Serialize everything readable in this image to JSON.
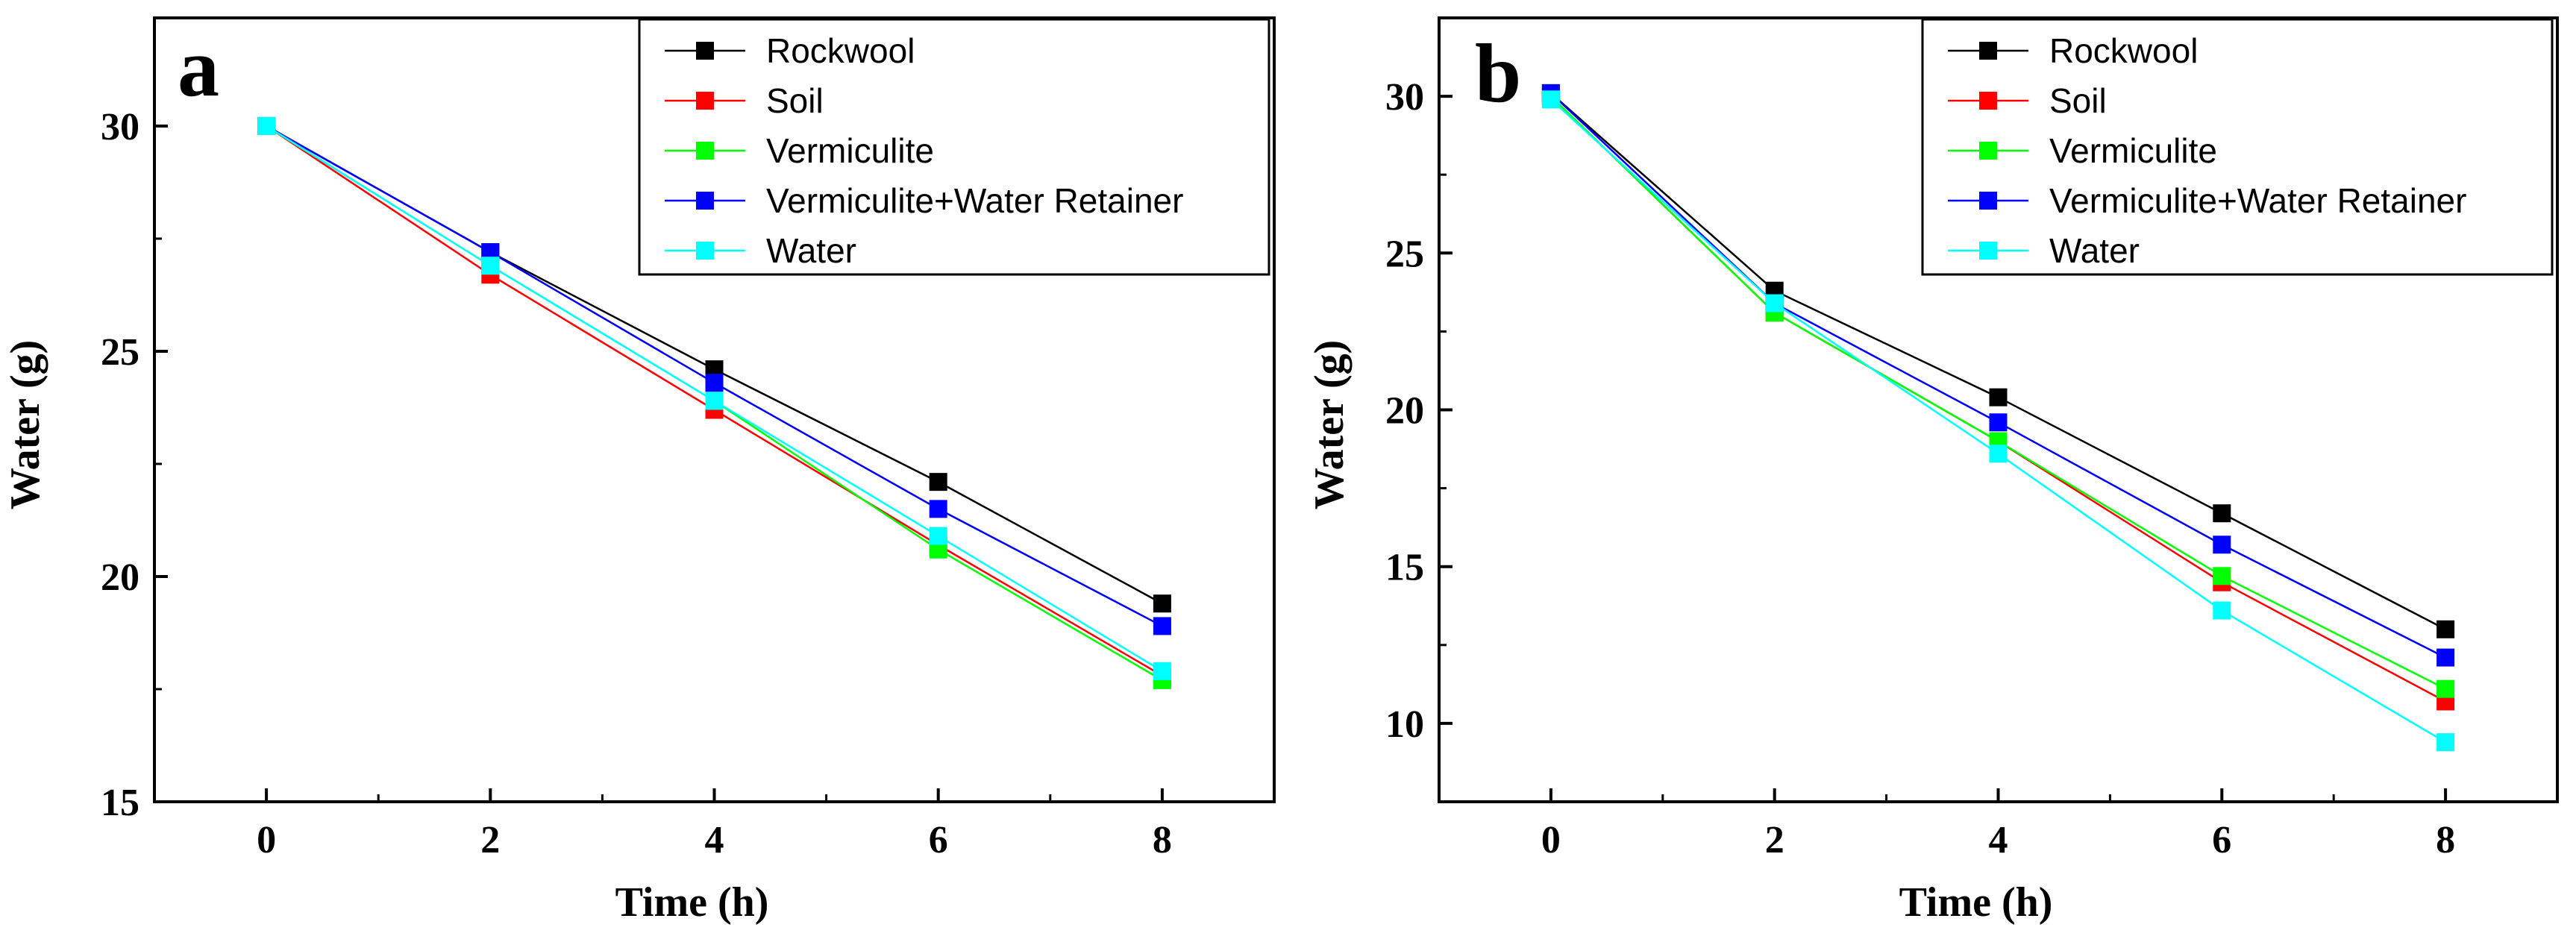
{
  "chart_data": [
    {
      "type": "line",
      "panel_label": "a",
      "xlabel": "Time (h)",
      "ylabel": "Water (g)",
      "x": [
        0,
        2,
        4,
        6,
        8
      ],
      "xticks": [
        0,
        2,
        4,
        6,
        8
      ],
      "yticks": [
        15,
        20,
        25,
        30
      ],
      "xlim": [
        -1,
        9
      ],
      "ylim": [
        15,
        32.4
      ],
      "legend_position": "top-right",
      "series": [
        {
          "name": "Rockwool",
          "color": "#000000",
          "values": [
            30.0,
            27.2,
            24.6,
            22.1,
            19.4
          ]
        },
        {
          "name": "Soil",
          "color": "#ff0000",
          "values": [
            30.0,
            26.7,
            23.7,
            20.7,
            17.8
          ]
        },
        {
          "name": "Vermiculite",
          "color": "#00ff00",
          "values": [
            30.0,
            26.9,
            23.9,
            20.6,
            17.7
          ]
        },
        {
          "name": "Vermiculite+Water Retainer",
          "color": "#0000ff",
          "values": [
            30.0,
            27.2,
            24.3,
            21.5,
            18.9
          ]
        },
        {
          "name": "Water",
          "color": "#00ffff",
          "values": [
            30.0,
            26.9,
            23.9,
            20.9,
            17.9
          ]
        }
      ]
    },
    {
      "type": "line",
      "panel_label": "b",
      "xlabel": "Time (h)",
      "ylabel": "Water (g)",
      "x": [
        0,
        2,
        4,
        6,
        8
      ],
      "xticks": [
        0,
        2,
        4,
        6,
        8
      ],
      "yticks": [
        10,
        15,
        20,
        25,
        30
      ],
      "xlim": [
        -1,
        9
      ],
      "ylim": [
        7.5,
        32.5
      ],
      "legend_position": "top-right",
      "series": [
        {
          "name": "Rockwool",
          "color": "#000000",
          "values": [
            30.1,
            23.8,
            20.4,
            16.7,
            13.0
          ]
        },
        {
          "name": "Soil",
          "color": "#ff0000",
          "values": [
            30.0,
            23.1,
            19.0,
            14.5,
            10.7
          ]
        },
        {
          "name": "Vermiculite",
          "color": "#00ff00",
          "values": [
            30.0,
            23.1,
            19.0,
            14.7,
            11.1
          ]
        },
        {
          "name": "Vermiculite+Water Retainer",
          "color": "#0000ff",
          "values": [
            30.1,
            23.4,
            19.6,
            15.7,
            12.1
          ]
        },
        {
          "name": "Water",
          "color": "#00ffff",
          "values": [
            29.9,
            23.4,
            18.6,
            13.6,
            9.4
          ]
        }
      ]
    }
  ]
}
